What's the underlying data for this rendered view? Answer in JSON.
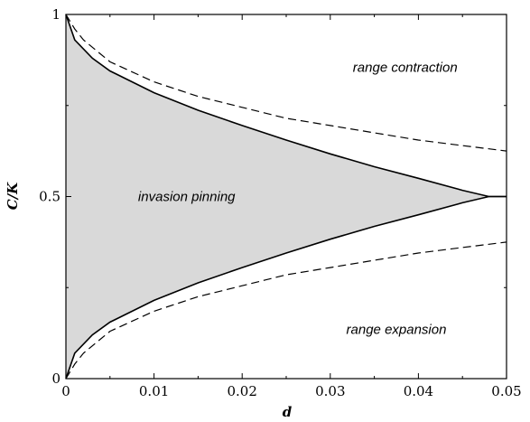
{
  "chart_data": {
    "type": "area",
    "xlabel": "d",
    "ylabel": "C/K",
    "xlim": [
      0,
      0.05
    ],
    "ylim": [
      0,
      1
    ],
    "x_ticks": [
      "0",
      "0.01",
      "0.02",
      "0.03",
      "0.04",
      "0.05"
    ],
    "y_ticks": [
      "0",
      "0.5",
      "1"
    ],
    "grid": false,
    "fill_color": "#d9d9d9",
    "series": [
      {
        "style": "solid",
        "x": [
          0,
          0.001,
          0.003,
          0.005,
          0.01,
          0.015,
          0.02,
          0.025,
          0.03,
          0.035,
          0.04,
          0.045,
          0.048,
          0.05
        ],
        "y": [
          1.0,
          0.93,
          0.88,
          0.845,
          0.785,
          0.737,
          0.695,
          0.655,
          0.617,
          0.582,
          0.55,
          0.517,
          0.5,
          0.5
        ]
      },
      {
        "style": "solid",
        "x": [
          0,
          0.001,
          0.003,
          0.005,
          0.01,
          0.015,
          0.02,
          0.025,
          0.03,
          0.035,
          0.04,
          0.045,
          0.048,
          0.05
        ],
        "y": [
          0.0,
          0.07,
          0.12,
          0.155,
          0.215,
          0.263,
          0.305,
          0.345,
          0.383,
          0.418,
          0.45,
          0.483,
          0.5,
          0.5
        ]
      },
      {
        "style": "dashed",
        "x": [
          0,
          0.001,
          0.002,
          0.005,
          0.01,
          0.015,
          0.02,
          0.025,
          0.03,
          0.035,
          0.04,
          0.045,
          0.05
        ],
        "y": [
          1.0,
          0.96,
          0.93,
          0.87,
          0.815,
          0.775,
          0.745,
          0.715,
          0.695,
          0.675,
          0.655,
          0.64,
          0.625
        ]
      },
      {
        "style": "dashed",
        "x": [
          0,
          0.001,
          0.002,
          0.005,
          0.01,
          0.015,
          0.02,
          0.025,
          0.03,
          0.035,
          0.04,
          0.045,
          0.05
        ],
        "y": [
          0.0,
          0.04,
          0.07,
          0.13,
          0.185,
          0.225,
          0.255,
          0.285,
          0.305,
          0.325,
          0.345,
          0.36,
          0.375
        ]
      }
    ],
    "annotations": [
      {
        "text": "range contraction",
        "x": 0.0385,
        "y": 0.855
      },
      {
        "text": "invasion pinning",
        "x": 0.0137,
        "y": 0.5
      },
      {
        "text": "range expansion",
        "x": 0.0375,
        "y": 0.135
      }
    ]
  }
}
